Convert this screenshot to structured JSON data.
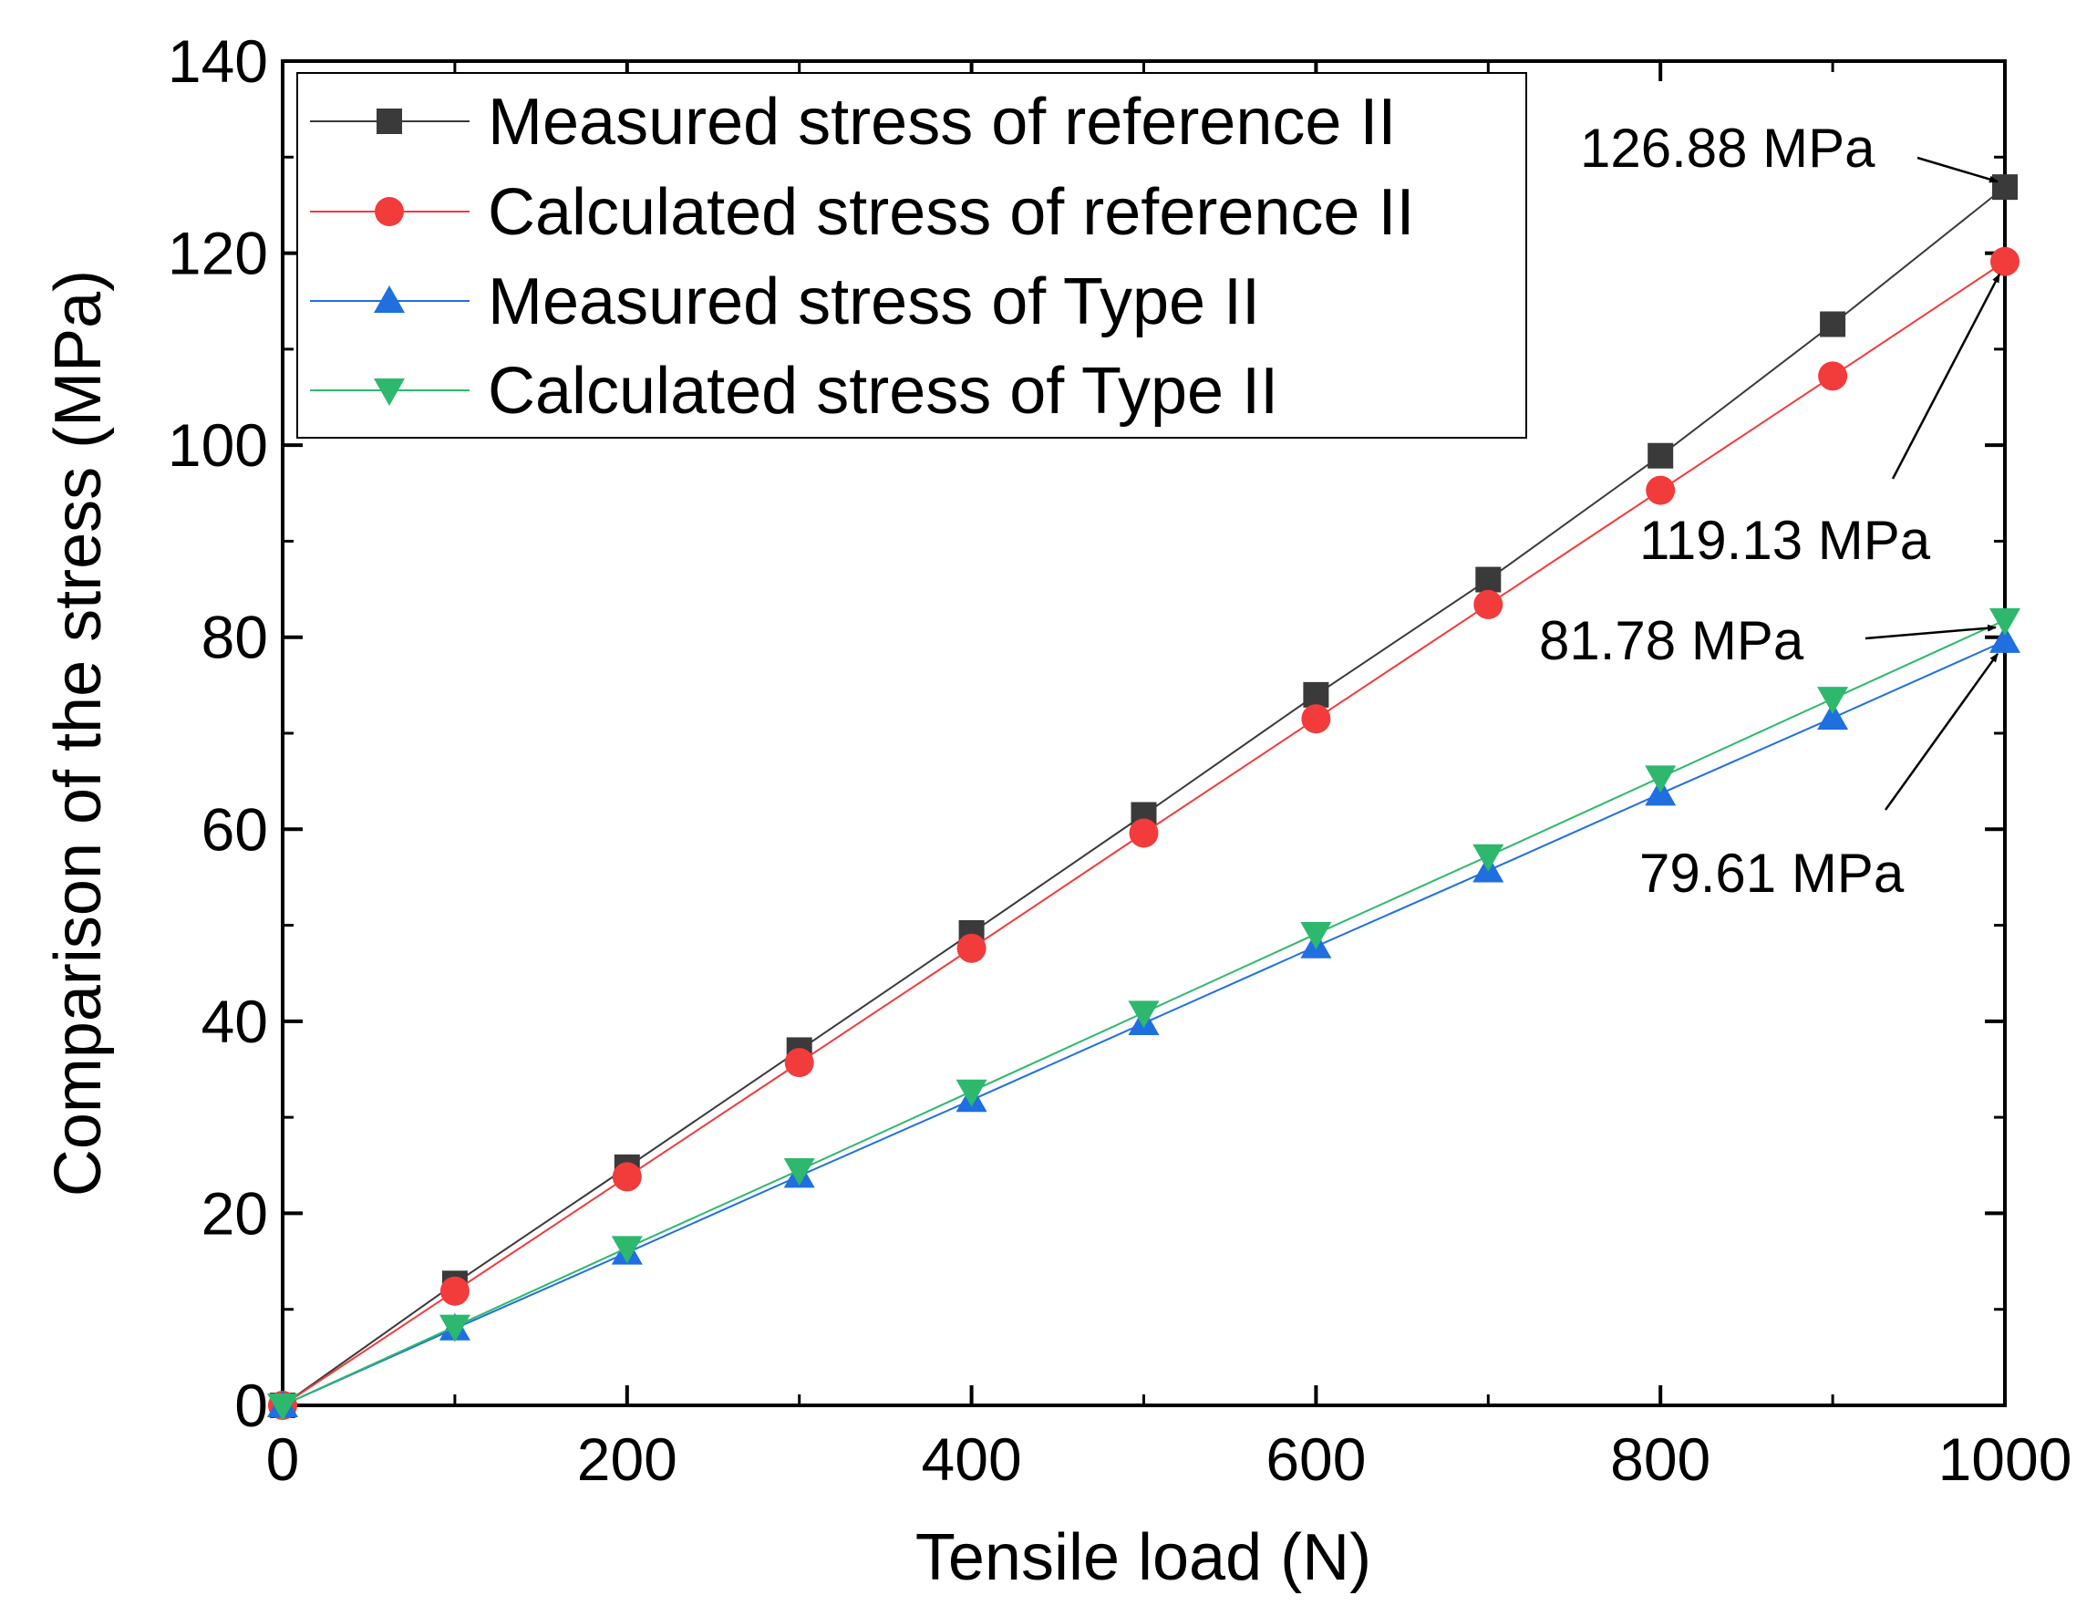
{
  "chart_data": {
    "type": "line",
    "title": "",
    "xlabel": "Tensile load (N)",
    "ylabel": "Comparison of the stress (MPa)",
    "xlim": [
      0,
      1000
    ],
    "ylim": [
      0,
      140
    ],
    "xticks": [
      0,
      200,
      400,
      600,
      800,
      1000
    ],
    "yticks": [
      0,
      20,
      40,
      60,
      80,
      100,
      120,
      140
    ],
    "x": [
      0,
      100,
      200,
      300,
      400,
      500,
      600,
      700,
      800,
      900,
      1000
    ],
    "legend_position": "top-left",
    "series": [
      {
        "name": "Measured stress of reference II",
        "color": "#3a3a3a",
        "marker": "square",
        "values": [
          0,
          12.7,
          24.8,
          37.0,
          49.2,
          61.5,
          74.0,
          86.0,
          98.9,
          112.6,
          126.88
        ]
      },
      {
        "name": "Calculated stress of reference II",
        "color": "#f23b3b",
        "marker": "circle",
        "values": [
          0,
          11.9,
          23.8,
          35.7,
          47.6,
          59.6,
          71.5,
          83.4,
          95.3,
          107.2,
          119.13
        ]
      },
      {
        "name": "Measured stress of Type II",
        "color": "#1f6fe0",
        "marker": "triangle-up",
        "values": [
          0,
          8.0,
          15.9,
          23.9,
          31.8,
          39.8,
          47.8,
          55.7,
          63.7,
          71.6,
          79.61
        ]
      },
      {
        "name": "Calculated stress of Type II",
        "color": "#2db86e",
        "marker": "triangle-down",
        "values": [
          0,
          8.2,
          16.4,
          24.5,
          32.7,
          40.9,
          49.1,
          57.2,
          65.4,
          73.6,
          81.78
        ]
      }
    ],
    "annotations": [
      {
        "text": "126.88 MPa",
        "x": 1000,
        "y": 126.88
      },
      {
        "text": "119.13 MPa",
        "x": 1000,
        "y": 119.13
      },
      {
        "text": "81.78 MPa",
        "x": 1000,
        "y": 81.78
      },
      {
        "text": "79.61 MPa",
        "x": 1000,
        "y": 79.61
      }
    ]
  }
}
